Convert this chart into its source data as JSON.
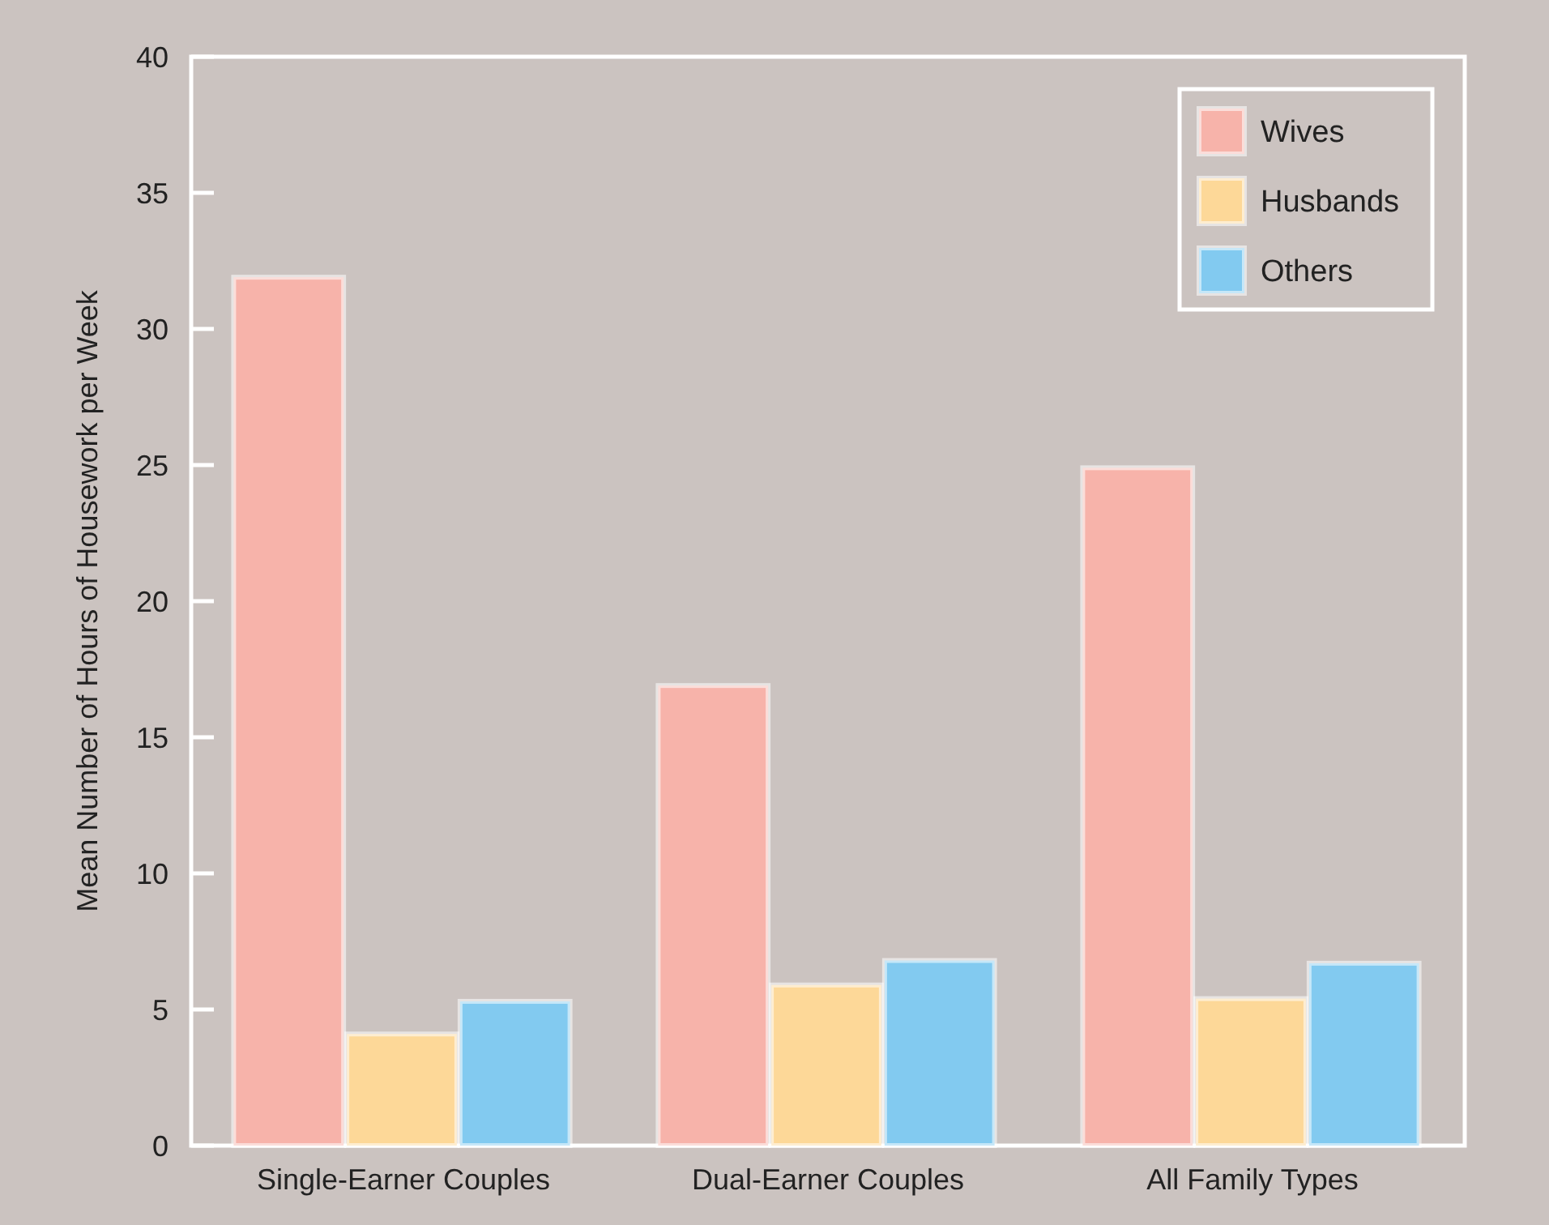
{
  "chart_data": {
    "type": "bar",
    "ylabel": "Mean Number of Hours of Housework per Week",
    "categories": [
      "Single-Earner Couples",
      "Dual-Earner Couples",
      "All Family Types"
    ],
    "series": [
      {
        "name": "Wives",
        "color": "#f7b3aa",
        "values": [
          31.9,
          16.9,
          24.9
        ]
      },
      {
        "name": "Husbands",
        "color": "#fdd898",
        "values": [
          4.1,
          5.9,
          5.4
        ]
      },
      {
        "name": "Others",
        "color": "#82caf0",
        "values": [
          5.3,
          6.8,
          6.7
        ]
      }
    ],
    "ylim": [
      0,
      40
    ],
    "yticks": [
      0,
      5,
      10,
      15,
      20,
      25,
      30,
      35,
      40
    ],
    "legend": "top right"
  }
}
